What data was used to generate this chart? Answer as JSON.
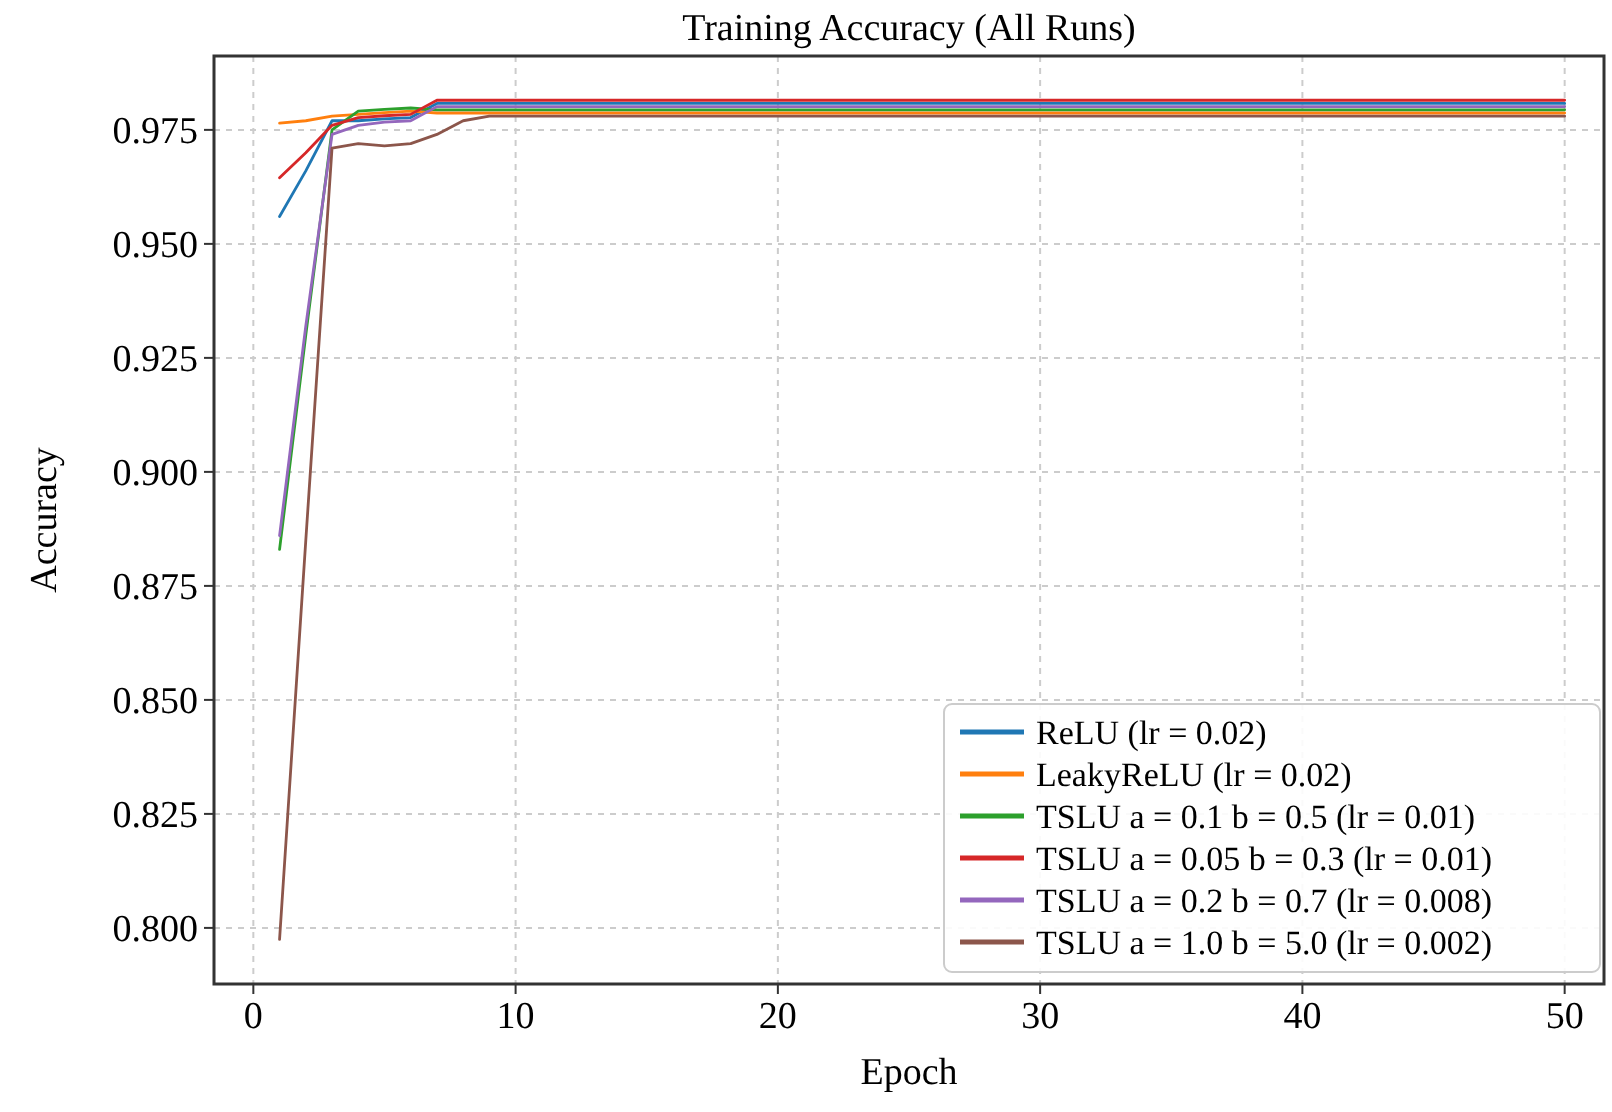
{
  "chart_data": {
    "type": "line",
    "title": "Training Accuracy (All Runs)",
    "xlabel": "Epoch",
    "ylabel": "Accuracy",
    "x": [
      1,
      2,
      3,
      4,
      5,
      6,
      7,
      8,
      9,
      10,
      11,
      12,
      13,
      14,
      15,
      16,
      17,
      18,
      19,
      20,
      21,
      22,
      23,
      24,
      25,
      26,
      27,
      28,
      29,
      30,
      31,
      32,
      33,
      34,
      35,
      36,
      37,
      38,
      39,
      40,
      41,
      42,
      43,
      44,
      45,
      46,
      47,
      48,
      49,
      50
    ],
    "xlim": [
      -1.5,
      51.5
    ],
    "xticks": [
      0,
      10,
      20,
      30,
      40,
      50
    ],
    "ylim": [
      0.7877,
      0.9912
    ],
    "yticks": [
      {
        "value": 0.8,
        "label": "0.800"
      },
      {
        "value": 0.825,
        "label": "0.825"
      },
      {
        "value": 0.85,
        "label": "0.850"
      },
      {
        "value": 0.875,
        "label": "0.875"
      },
      {
        "value": 0.9,
        "label": "0.900"
      },
      {
        "value": 0.925,
        "label": "0.925"
      },
      {
        "value": 0.95,
        "label": "0.950"
      },
      {
        "value": 0.975,
        "label": "0.975"
      }
    ],
    "grid": true,
    "legend": "bottom right",
    "line_style": "solid",
    "series": [
      {
        "name": "ReLU (lr = 0.02)",
        "color": "#1f77b4",
        "values": [
          0.956,
          0.966,
          0.977,
          0.977,
          0.9774,
          0.9777,
          0.9808,
          0.9808,
          0.9808,
          0.9808,
          0.9808,
          0.9808,
          0.9808,
          0.9808,
          0.9808,
          0.9808,
          0.9808,
          0.9808,
          0.9808,
          0.9808,
          0.9808,
          0.9808,
          0.9808,
          0.9808,
          0.9808,
          0.9808,
          0.9808,
          0.9808,
          0.9808,
          0.9808,
          0.9808,
          0.9808,
          0.9808,
          0.9808,
          0.9808,
          0.9808,
          0.9808,
          0.9808,
          0.9808,
          0.9808,
          0.9808,
          0.9808,
          0.9808,
          0.9808,
          0.9808,
          0.9808,
          0.9808,
          0.9808,
          0.9808,
          0.9808
        ]
      },
      {
        "name": "LeakyReLU (lr = 0.02)",
        "color": "#ff7f0e",
        "values": [
          0.9765,
          0.977,
          0.978,
          0.9784,
          0.9788,
          0.9791,
          0.9787,
          0.9787,
          0.9787,
          0.9787,
          0.9787,
          0.9787,
          0.9787,
          0.9787,
          0.9787,
          0.9787,
          0.9787,
          0.9787,
          0.9787,
          0.9787,
          0.9787,
          0.9787,
          0.9787,
          0.9787,
          0.9787,
          0.9787,
          0.9787,
          0.9787,
          0.9787,
          0.9787,
          0.9787,
          0.9787,
          0.9787,
          0.9787,
          0.9787,
          0.9787,
          0.9787,
          0.9787,
          0.9787,
          0.9787,
          0.9787,
          0.9787,
          0.9787,
          0.9787,
          0.9787,
          0.9787,
          0.9787,
          0.9787,
          0.9787,
          0.9787
        ]
      },
      {
        "name": "TSLU a = 0.1 b = 0.5 (lr = 0.01)",
        "color": "#2ca02c",
        "values": [
          0.883,
          0.93,
          0.975,
          0.9791,
          0.9795,
          0.9798,
          0.9794,
          0.9794,
          0.9794,
          0.9794,
          0.9794,
          0.9794,
          0.9794,
          0.9794,
          0.9794,
          0.9794,
          0.9794,
          0.9794,
          0.9794,
          0.9794,
          0.9794,
          0.9794,
          0.9794,
          0.9794,
          0.9794,
          0.9794,
          0.9794,
          0.9794,
          0.9794,
          0.9794,
          0.9794,
          0.9794,
          0.9794,
          0.9794,
          0.9794,
          0.9794,
          0.9794,
          0.9794,
          0.9794,
          0.9794,
          0.9794,
          0.9794,
          0.9794,
          0.9794,
          0.9794,
          0.9794,
          0.9794,
          0.9794,
          0.9794,
          0.9794
        ]
      },
      {
        "name": "TSLU a = 0.05 b = 0.3 (lr = 0.01)",
        "color": "#d62728",
        "values": [
          0.9645,
          0.97,
          0.976,
          0.9777,
          0.9781,
          0.9784,
          0.9815,
          0.9815,
          0.9815,
          0.9815,
          0.9815,
          0.9815,
          0.9815,
          0.9815,
          0.9815,
          0.9815,
          0.9815,
          0.9815,
          0.9815,
          0.9815,
          0.9815,
          0.9815,
          0.9815,
          0.9815,
          0.9815,
          0.9815,
          0.9815,
          0.9815,
          0.9815,
          0.9815,
          0.9815,
          0.9815,
          0.9815,
          0.9815,
          0.9815,
          0.9815,
          0.9815,
          0.9815,
          0.9815,
          0.9815,
          0.9815,
          0.9815,
          0.9815,
          0.9815,
          0.9815,
          0.9815,
          0.9815,
          0.9815,
          0.9815,
          0.9815
        ]
      },
      {
        "name": "TSLU a = 0.2 b = 0.7 (lr = 0.008)",
        "color": "#9467bd",
        "values": [
          0.886,
          0.932,
          0.974,
          0.976,
          0.9767,
          0.977,
          0.9801,
          0.9801,
          0.9801,
          0.9801,
          0.9801,
          0.9801,
          0.9801,
          0.9801,
          0.9801,
          0.9801,
          0.9801,
          0.9801,
          0.9801,
          0.9801,
          0.9801,
          0.9801,
          0.9801,
          0.9801,
          0.9801,
          0.9801,
          0.9801,
          0.9801,
          0.9801,
          0.9801,
          0.9801,
          0.9801,
          0.9801,
          0.9801,
          0.9801,
          0.9801,
          0.9801,
          0.9801,
          0.9801,
          0.9801,
          0.9801,
          0.9801,
          0.9801,
          0.9801,
          0.9801,
          0.9801,
          0.9801,
          0.9801,
          0.9801,
          0.9801
        ]
      },
      {
        "name": "TSLU a = 1.0 b = 5.0 (lr = 0.002)",
        "color": "#8c564b",
        "values": [
          0.7975,
          0.885,
          0.971,
          0.972,
          0.9715,
          0.972,
          0.974,
          0.977,
          0.978,
          0.978,
          0.978,
          0.978,
          0.978,
          0.978,
          0.978,
          0.978,
          0.978,
          0.978,
          0.978,
          0.978,
          0.978,
          0.978,
          0.978,
          0.978,
          0.978,
          0.978,
          0.978,
          0.978,
          0.978,
          0.978,
          0.978,
          0.978,
          0.978,
          0.978,
          0.978,
          0.978,
          0.978,
          0.978,
          0.978,
          0.978,
          0.978,
          0.978,
          0.978,
          0.978,
          0.978,
          0.978,
          0.978,
          0.978,
          0.978,
          0.978
        ]
      }
    ]
  }
}
